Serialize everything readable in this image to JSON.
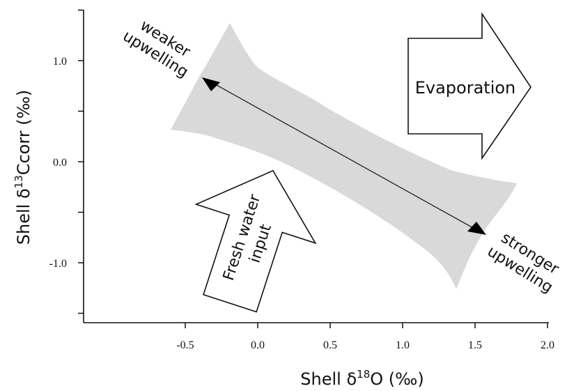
{
  "chart_data": {
    "type": "scatter",
    "x_axis": {
      "label_prefix": "Shell δ",
      "label_sup": "18",
      "label_suffix": "O (‰)",
      "range": [
        -1.2,
        2.0
      ],
      "ticks": [
        "-0.5",
        "0.0",
        "0.5",
        "1.0",
        "1.5",
        "2.0"
      ],
      "tick_values": [
        -0.5,
        0.0,
        0.5,
        1.0,
        1.5,
        2.0
      ]
    },
    "y_axis": {
      "label_prefix": "Shell δ",
      "label_sup": "13",
      "label_suffix": "Ccorr (‰)",
      "range": [
        -1.6,
        1.5
      ],
      "ticks": [
        "1.0",
        "0.0",
        "-1.0"
      ],
      "tick_values": [
        1.0,
        0.0,
        -1.0
      ]
    },
    "trend_arrow": {
      "from": [
        -0.38,
        0.82
      ],
      "to": [
        1.58,
        -0.7
      ]
    },
    "band_color": "#d9d9d9",
    "annotations": {
      "weaker": [
        "weaker",
        "upwelling"
      ],
      "stronger": [
        "stronger",
        "upwelling"
      ],
      "evaporation": "Evaporation",
      "fresh_water": [
        "Fresh water",
        "input"
      ]
    }
  }
}
